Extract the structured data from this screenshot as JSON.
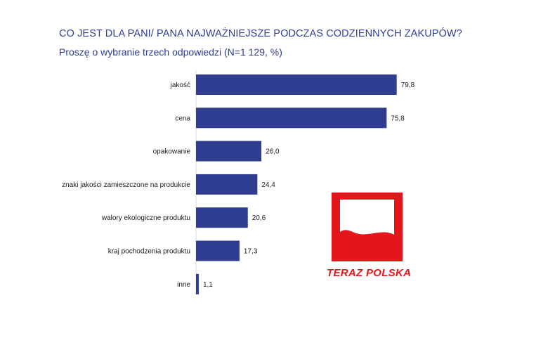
{
  "title": "CO JEST DLA PANI/ PANA NAJWAŻNIEJSZE PODCZAS CODZIENNYCH ZAKUPÓW?",
  "subtitle": "Proszę o wybranie trzech odpowiedzi (N=1 129, %)",
  "logo": {
    "text": "TERAZ POLSKA",
    "color": "#e3171b"
  },
  "colors": {
    "bar": "#2e3d8f",
    "title": "#2e3d8f"
  },
  "chart_data": {
    "type": "bar",
    "orientation": "horizontal",
    "categories": [
      "jakość",
      "cena",
      "opakowanie",
      "znaki jakości zamieszczone na produkcie",
      "walory ekologiczne produktu",
      "kraj pochodzenia produktu",
      "inne"
    ],
    "values": [
      79.8,
      75.8,
      26.0,
      24.4,
      20.6,
      17.3,
      1.1
    ],
    "value_labels": [
      "79,8",
      "75,8",
      "26,0",
      "24,4",
      "20,6",
      "17,3",
      "1,1"
    ],
    "xlim": [
      0,
      100
    ],
    "grid": false,
    "legend": "none"
  }
}
